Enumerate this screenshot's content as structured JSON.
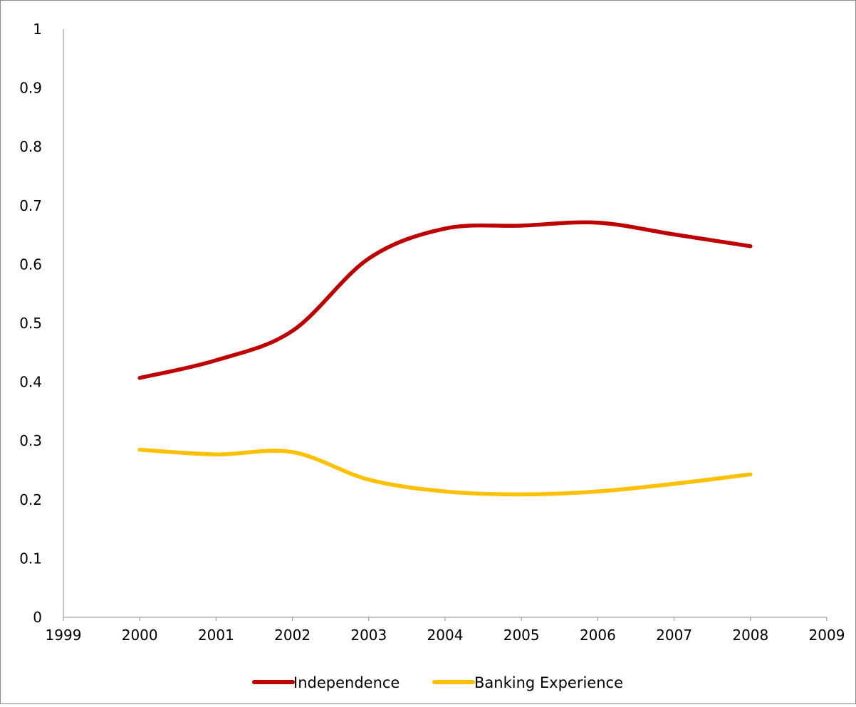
{
  "chart_data": {
    "type": "line",
    "smooth": true,
    "title": "",
    "xlabel": "",
    "ylabel": "",
    "xlim": [
      1999,
      2009
    ],
    "ylim": [
      0,
      1
    ],
    "x_ticks": [
      "1999",
      "2000",
      "2001",
      "2002",
      "2003",
      "2004",
      "2005",
      "2006",
      "2007",
      "2008",
      "2009"
    ],
    "y_ticks": [
      "0",
      "0.1",
      "0.2",
      "0.3",
      "0.4",
      "0.5",
      "0.6",
      "0.7",
      "0.8",
      "0.9",
      "1"
    ],
    "grid": false,
    "legend_position": "bottom",
    "x": [
      2000,
      2001,
      2002,
      2003,
      2004,
      2005,
      2006,
      2007,
      2008
    ],
    "series": [
      {
        "name": "Independence",
        "color": "#c00000",
        "values": [
          0.407,
          0.437,
          0.487,
          0.61,
          0.661,
          0.666,
          0.671,
          0.651,
          0.631
        ]
      },
      {
        "name": "Banking Experience",
        "color": "#ffc000",
        "values": [
          0.285,
          0.277,
          0.281,
          0.234,
          0.214,
          0.209,
          0.214,
          0.227,
          0.243
        ]
      }
    ]
  }
}
